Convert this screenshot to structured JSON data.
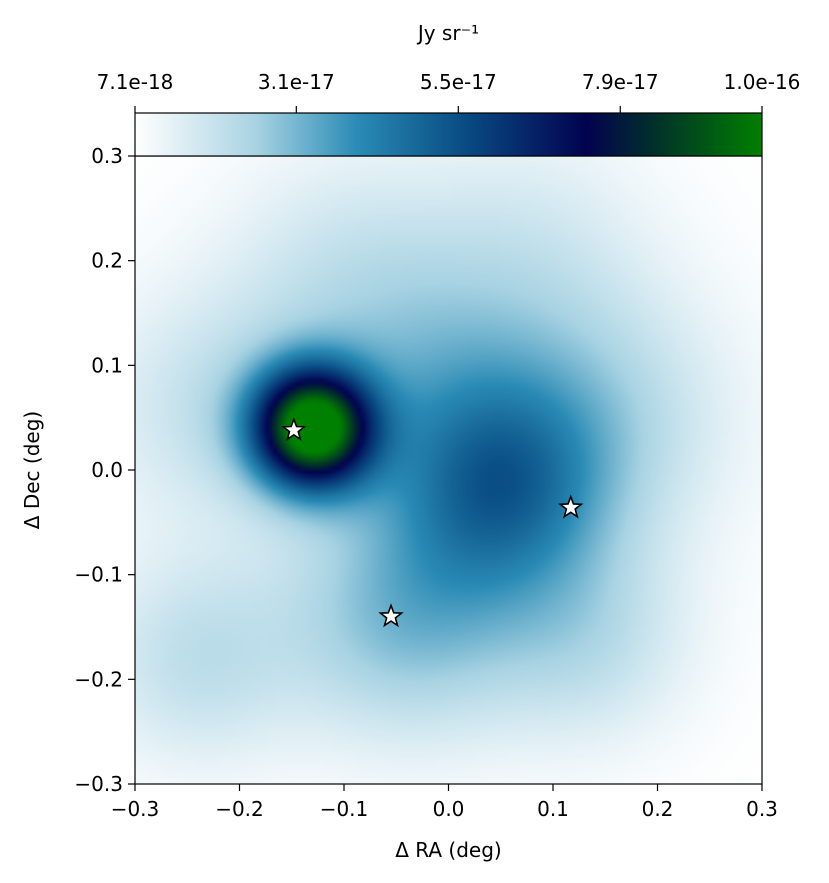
{
  "chart_data": {
    "type": "heatmap",
    "title": "",
    "xlabel": "Δ RA (deg)",
    "ylabel": "Δ Dec (deg)",
    "xlim": [
      -0.3,
      0.3
    ],
    "ylim": [
      -0.3,
      0.3
    ],
    "x_ticks": [
      -0.3,
      -0.2,
      -0.1,
      0.0,
      0.1,
      0.2,
      0.3
    ],
    "x_tick_labels": [
      "−0.3",
      "−0.2",
      "−0.1",
      "0.0",
      "0.1",
      "0.2",
      "0.3"
    ],
    "y_ticks": [
      -0.3,
      -0.2,
      -0.1,
      0.0,
      0.1,
      0.2,
      0.3
    ],
    "y_tick_labels": [
      "−0.3",
      "−0.2",
      "−0.1",
      "0.0",
      "0.1",
      "0.2",
      "0.3"
    ],
    "colorbar": {
      "label": "Jy sr⁻¹",
      "orientation": "horizontal",
      "placement": "top",
      "min": 7.1e-18,
      "max": 1e-16,
      "ticks": [
        7.1e-18,
        3.1e-17,
        5.5e-17,
        7.9e-17,
        1e-16
      ],
      "tick_labels": [
        "7.1e-18",
        "3.1e-17",
        "5.5e-17",
        "7.9e-17",
        "1.0e-16"
      ],
      "colormap_stops": [
        {
          "value": 7.1e-18,
          "color": "#ffffff"
        },
        {
          "value": 2.5e-17,
          "color": "#a8d3e3"
        },
        {
          "value": 4e-17,
          "color": "#2a8bb5"
        },
        {
          "value": 5.5e-17,
          "color": "#0a4f86"
        },
        {
          "value": 7.4e-17,
          "color": "#02024f"
        },
        {
          "value": 8.4e-17,
          "color": "#01302a"
        },
        {
          "value": 1e-16,
          "color": "#008000"
        }
      ]
    },
    "emission_components": [
      {
        "ra": -0.13,
        "dec": 0.04,
        "sigma": 0.04,
        "peak": 9.3e-17
      },
      {
        "ra": 0.05,
        "dec": -0.02,
        "sigma": 0.07,
        "peak": 3e-17
      },
      {
        "ra": -0.04,
        "dec": -0.14,
        "sigma": 0.08,
        "peak": 2.2e-17
      },
      {
        "ra": -0.02,
        "dec": 0.08,
        "sigma": 0.09,
        "peak": 1.6e-17
      },
      {
        "ra": 0.14,
        "dec": 0.05,
        "sigma": 0.09,
        "peak": 1.5e-17
      },
      {
        "ra": -0.24,
        "dec": -0.18,
        "sigma": 0.07,
        "peak": 1.3e-17
      },
      {
        "ra": 0.13,
        "dec": -0.16,
        "sigma": 0.07,
        "peak": 1.3e-17
      },
      {
        "ra": -0.22,
        "dec": 0.06,
        "sigma": 0.08,
        "peak": 1.2e-17
      },
      {
        "ra": -0.1,
        "dec": 0.2,
        "sigma": 0.08,
        "peak": 8e-18
      },
      {
        "ra": 0.08,
        "dec": 0.22,
        "sigma": 0.08,
        "peak": 7e-18
      }
    ],
    "markers": [
      {
        "name": "star-marker-1",
        "ra": -0.148,
        "dec": 0.038,
        "symbol": "star",
        "fill": "#ffffff",
        "stroke": "#000000"
      },
      {
        "name": "star-marker-2",
        "ra": 0.117,
        "dec": -0.036,
        "symbol": "star",
        "fill": "#ffffff",
        "stroke": "#000000"
      },
      {
        "name": "star-marker-3",
        "ra": -0.055,
        "dec": -0.14,
        "symbol": "star",
        "fill": "#ffffff",
        "stroke": "#000000"
      }
    ],
    "grid": false,
    "legend": "none"
  }
}
